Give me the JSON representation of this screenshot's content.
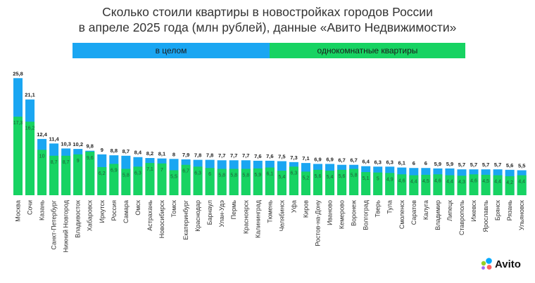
{
  "header": {
    "title_line1": "Сколько стоили квартиры в новостройках городов России",
    "title_line2": "в апреле 2025 года (млн рублей), данные «Авито Недвижимости»"
  },
  "legend": {
    "total_label": "в целом",
    "one_room_label": "однокомнатные квартиры"
  },
  "brand": {
    "name": "Avito",
    "colors": {
      "total": "#1aa6f2",
      "one_room": "#17d362",
      "logo_dots": [
        "#00aaff",
        "#97cf26",
        "#ff6163",
        "#a169f7"
      ]
    }
  },
  "chart_data": {
    "type": "bar",
    "title": "Сколько стоили квартиры в новостройках городов России в апреле 2025 года (млн рублей), данные «Авито Недвижимости»",
    "xlabel": "",
    "ylabel": "млн рублей",
    "ylim": [
      0,
      26
    ],
    "categories": [
      "Москва",
      "Сочи",
      "Казань",
      "Санкт-Петербург",
      "Нижний Новгород",
      "Владивосток",
      "Хабаровск",
      "Иркутск",
      "Россия",
      "Самара",
      "Омск",
      "Астрахань",
      "Новосибирск",
      "Томск",
      "Екатеринбург",
      "Краснодар",
      "Барнаул",
      "Улан-Удэ",
      "Пермь",
      "Красноярск",
      "Калининград",
      "Тюмень",
      "Челябинск",
      "Уфа",
      "Киров",
      "Ростов-на-Дону",
      "Иваново",
      "Кемерово",
      "Воронеж",
      "Волгоград",
      "Тверь",
      "Тула",
      "Смоленск",
      "Саратов",
      "Калуга",
      "Владимир",
      "Липецк",
      "Ставрополь",
      "Ижевск",
      "Ярославль",
      "Брянск",
      "Рязань",
      "Ульяновск"
    ],
    "series": [
      {
        "name": "в целом",
        "values": [
          25.8,
          21.1,
          12.4,
          11.4,
          10.3,
          10.2,
          9.8,
          9,
          8.8,
          8.7,
          8.4,
          8.2,
          8.1,
          8,
          7.9,
          7.8,
          7.8,
          7.7,
          7.7,
          7.7,
          7.6,
          7.6,
          7.5,
          7.3,
          7.1,
          6.9,
          6.9,
          6.7,
          6.7,
          6.4,
          6.3,
          6.3,
          6.1,
          6,
          6,
          5.9,
          5.9,
          5.7,
          5.7,
          5.7,
          5.7,
          5.6,
          5.5
        ],
        "labels": [
          "25,8",
          "21,1",
          "12,4",
          "11,4",
          "10,3",
          "10,2",
          "9,8",
          "9",
          "8,8",
          "8,7",
          "8,4",
          "8,2",
          "8,1",
          "8",
          "7,9",
          "7,8",
          "7,8",
          "7,7",
          "7,7",
          "7,7",
          "7,6",
          "7,6",
          "7,5",
          "7,3",
          "7,1",
          "6,9",
          "6,9",
          "6,7",
          "6,7",
          "6,4",
          "6,3",
          "6,3",
          "6,1",
          "6",
          "6",
          "5,9",
          "5,9",
          "5,7",
          "5,7",
          "5,7",
          "5,7",
          "5,6",
          "5,5"
        ]
      },
      {
        "name": "однокомнатные квартиры",
        "values": [
          17.3,
          16.2,
          10,
          8.7,
          8.7,
          9,
          9.6,
          6.2,
          6.9,
          5.8,
          6.3,
          7.1,
          7,
          5.5,
          6.7,
          6.3,
          6,
          5.8,
          5.8,
          5.8,
          5.9,
          6.1,
          5.4,
          6.3,
          5.2,
          5.6,
          5.4,
          5.6,
          5.8,
          5.1,
          5,
          4.9,
          4.6,
          4.4,
          4.5,
          4.6,
          4.4,
          4.3,
          4.6,
          4.5,
          4.4,
          4.2,
          4.4
        ],
        "labels": [
          "17,3",
          "16,2",
          "10",
          "8,7",
          "8,7",
          "9",
          "9,6",
          "6,2",
          "6,9",
          "5,8",
          "6,3",
          "7,1",
          "7",
          "5,5",
          "6,7",
          "6,3",
          "6",
          "5,8",
          "5,8",
          "5,8",
          "5,9",
          "6,1",
          "5,4",
          "6,3",
          "5,2",
          "5,6",
          "5,4",
          "5,6",
          "5,8",
          "5,1",
          "5",
          "4,9",
          "4,6",
          "4,4",
          "4,5",
          "4,6",
          "4,4",
          "4,3",
          "4,6",
          "4,5",
          "4,4",
          "4,2",
          "4,4"
        ]
      }
    ]
  }
}
